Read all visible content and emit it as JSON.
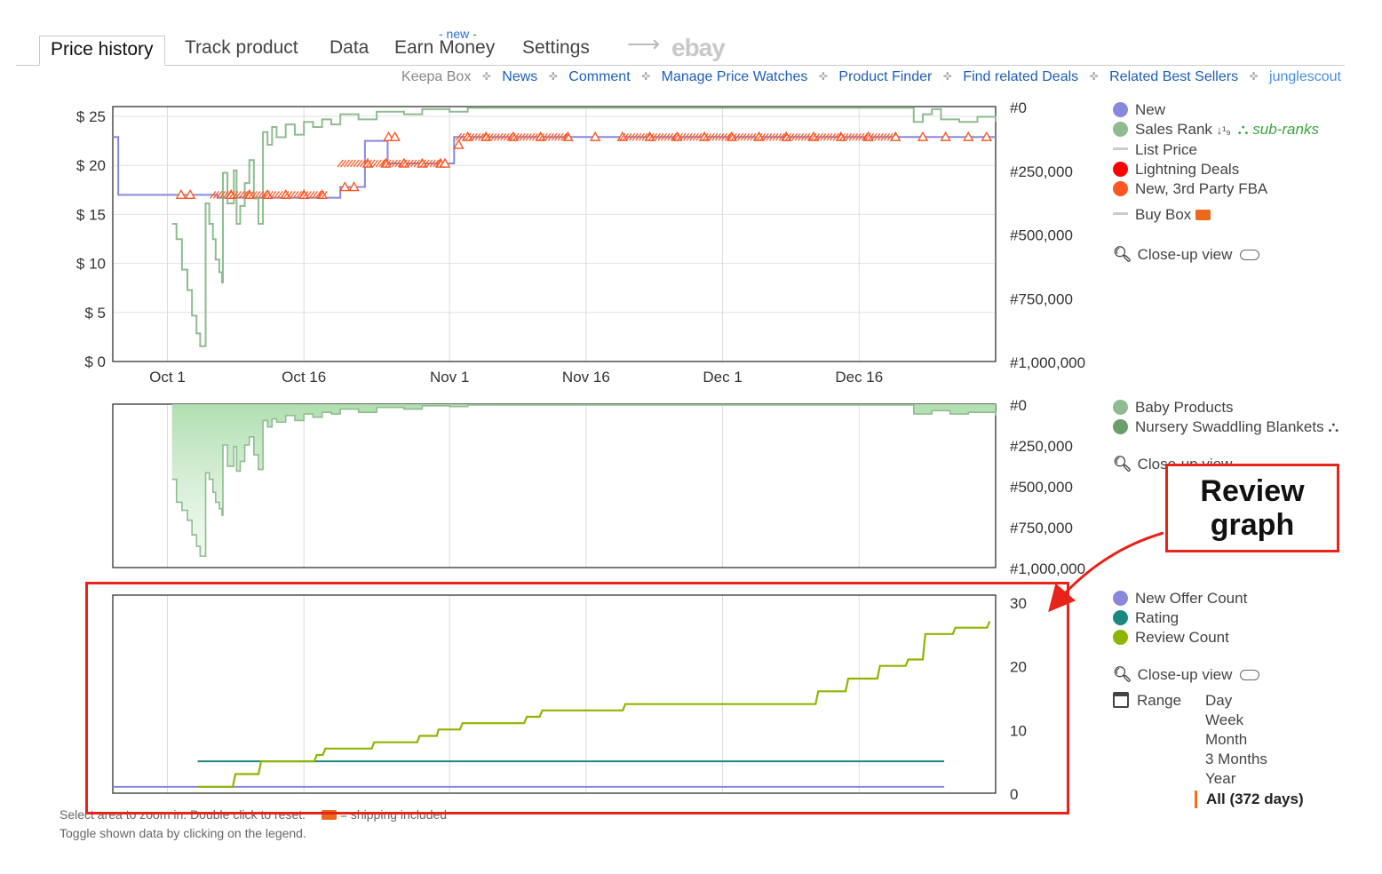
{
  "tabs": {
    "price_history": "Price history",
    "track_product": "Track product",
    "data": "Data",
    "earn_money": "Earn Money",
    "new_badge": "- new -",
    "settings": "Settings",
    "arrow": "⟶",
    "ebay": "ebay"
  },
  "sublinks": {
    "keepa_box": "Keepa Box",
    "news": "News",
    "comment": "Comment",
    "manage_price_watches": "Manage Price Watches",
    "product_finder": "Product Finder",
    "find_related_deals": "Find related Deals",
    "related_best_sellers": "Related Best Sellers",
    "junglescout": "junglescout",
    "separator": "✜"
  },
  "legend_main": {
    "new": "New",
    "sales_rank": "Sales Rank",
    "sort_glyph": "↓¹₉",
    "sub_ranks": "sub-ranks",
    "list_price": "List Price",
    "lightning_deals": "Lightning Deals",
    "new_3rd_party_fba": "New, 3rd Party FBA",
    "buy_box": "Buy Box",
    "close_up_view": "Close-up view"
  },
  "legend_rank": {
    "baby_products": "Baby Products",
    "nursery": "Nursery Swaddling Blankets",
    "close_up_view": "Close-up view"
  },
  "legend_review": {
    "new_offer_count": "New Offer Count",
    "rating": "Rating",
    "review_count": "Review Count",
    "close_up_view": "Close-up view",
    "range_label": "Range",
    "range_options": [
      "Day",
      "Week",
      "Month",
      "3 Months",
      "Year",
      "All (372 days)"
    ]
  },
  "footer": {
    "line1": "Select area to zoom in. Double click to reset.",
    "shipping": "= shipping included",
    "line2": "Toggle shown data by clicking on the legend."
  },
  "callout": {
    "line1": "Review",
    "line2": "graph"
  },
  "colors": {
    "new": "#8888dd",
    "sales_rank": "#8fbc8f",
    "list_price": "#cccccc",
    "lightning": "#ff0000",
    "fba": "#ff5722",
    "baby_products": "#8fbc8f",
    "nursery": "#6b9e6b",
    "offer_count": "#8888dd",
    "rating": "#1a8a80",
    "review_count": "#8db600",
    "callout": "#e8231a",
    "range_marker": "#ff6a1a"
  },
  "chart_data": [
    {
      "type": "line",
      "name": "price-chart",
      "x_ticks": [
        "Oct 1",
        "Oct 16",
        "Nov 1",
        "Nov 16",
        "Dec 1",
        "Dec 16"
      ],
      "x_tick_days": [
        0,
        15,
        31,
        46,
        61,
        76
      ],
      "x_range_days": [
        -6,
        91
      ],
      "y_left_ticks": [
        "$ 0",
        "$ 5",
        "$ 10",
        "$ 15",
        "$ 20",
        "$ 25"
      ],
      "ylim_left": [
        0,
        26
      ],
      "y_right_ticks": [
        "#0",
        "#250,000",
        "#500,000",
        "#750,000",
        "#1,000,000"
      ],
      "ylim_right": [
        0,
        1000000
      ],
      "series": [
        {
          "name": "New",
          "axis": "left",
          "points": [
            [
              -6,
              22.9
            ],
            [
              -5.4,
              22.9
            ],
            [
              -5.4,
              17
            ],
            [
              5.5,
              17
            ],
            [
              5.5,
              16.7
            ],
            [
              19,
              16.7
            ],
            [
              19,
              17.8
            ],
            [
              21.7,
              17.8
            ],
            [
              21.7,
              22.5
            ],
            [
              24.2,
              22.5
            ],
            [
              24.2,
              20.2
            ],
            [
              31.5,
              20.2
            ],
            [
              31.5,
              22.9
            ],
            [
              91,
              22.9
            ]
          ]
        },
        {
          "name": "Sales Rank",
          "axis": "right",
          "points": [
            [
              0.5,
              460000
            ],
            [
              1,
              520000
            ],
            [
              1.6,
              640000
            ],
            [
              2.2,
              720000
            ],
            [
              2.7,
              820000
            ],
            [
              3.2,
              890000
            ],
            [
              3.6,
              940000
            ],
            [
              4,
              940000
            ],
            [
              4.2,
              380000
            ],
            [
              4.6,
              460000
            ],
            [
              5,
              520000
            ],
            [
              5.3,
              600000
            ],
            [
              5.7,
              650000
            ],
            [
              6,
              690000
            ],
            [
              6.1,
              260000
            ],
            [
              6.6,
              380000
            ],
            [
              7.3,
              250000
            ],
            [
              7.6,
              460000
            ],
            [
              8,
              390000
            ],
            [
              8.5,
              300000
            ],
            [
              9,
              210000
            ],
            [
              9.5,
              360000
            ],
            [
              10,
              460000
            ],
            [
              10.5,
              100000
            ],
            [
              11,
              150000
            ],
            [
              11.5,
              80000
            ],
            [
              12,
              120000
            ],
            [
              13,
              70000
            ],
            [
              14,
              110000
            ],
            [
              15,
              60000
            ],
            [
              16,
              80000
            ],
            [
              17,
              50000
            ],
            [
              18,
              70000
            ],
            [
              19,
              30000
            ],
            [
              21,
              50000
            ],
            [
              23,
              20000
            ],
            [
              26,
              30000
            ],
            [
              28,
              10000
            ],
            [
              31,
              20000
            ],
            [
              33,
              5000
            ],
            [
              60,
              5000
            ],
            [
              73,
              5000
            ],
            [
              81,
              5000
            ],
            [
              82,
              60000
            ],
            [
              83,
              30000
            ],
            [
              84,
              10000
            ],
            [
              85,
              50000
            ],
            [
              87,
              60000
            ],
            [
              89,
              40000
            ],
            [
              91,
              60000
            ]
          ]
        },
        {
          "name": "New, 3rd Party FBA",
          "axis": "left",
          "markers": [
            [
              1.5,
              17
            ],
            [
              2.5,
              17
            ],
            [
              7,
              17
            ],
            [
              9,
              17
            ],
            [
              11,
              17
            ],
            [
              13,
              17
            ],
            [
              15,
              17
            ],
            [
              17,
              17
            ],
            [
              19.5,
              17.8
            ],
            [
              20.5,
              17.8
            ],
            [
              22,
              20.2
            ],
            [
              24,
              20.2
            ],
            [
              26,
              20.2
            ],
            [
              28,
              20.2
            ],
            [
              30,
              20.2
            ],
            [
              30.5,
              20.2
            ],
            [
              24.3,
              22.9
            ],
            [
              25,
              22.9
            ],
            [
              32,
              22.1
            ],
            [
              33,
              22.9
            ],
            [
              35,
              22.9
            ],
            [
              38,
              22.9
            ],
            [
              41,
              22.9
            ],
            [
              44,
              22.9
            ],
            [
              47,
              22.9
            ],
            [
              50,
              22.9
            ],
            [
              53,
              22.9
            ],
            [
              56,
              22.9
            ],
            [
              59,
              22.9
            ],
            [
              62,
              22.9
            ],
            [
              65,
              22.9
            ],
            [
              68,
              22.9
            ],
            [
              71,
              22.9
            ],
            [
              74,
              22.9
            ],
            [
              77,
              22.9
            ],
            [
              80,
              22.9
            ],
            [
              83,
              22.9
            ],
            [
              85.5,
              22.9
            ],
            [
              88,
              22.9
            ],
            [
              90,
              22.9
            ]
          ]
        }
      ]
    },
    {
      "type": "area",
      "name": "rank-chart",
      "x_ticks": [
        "Oct 1",
        "Oct 16",
        "Nov 1",
        "Nov 16",
        "Dec 1",
        "Dec 16"
      ],
      "y_right_ticks": [
        "#0",
        "#250,000",
        "#500,000",
        "#750,000",
        "#1,000,000"
      ],
      "ylim_right": [
        0,
        1000000
      ],
      "series": [
        {
          "name": "Baby Products",
          "points": [
            [
              0.5,
              460000
            ],
            [
              1,
              600000
            ],
            [
              1.6,
              650000
            ],
            [
              2.2,
              710000
            ],
            [
              2.7,
              800000
            ],
            [
              3.2,
              870000
            ],
            [
              3.6,
              930000
            ],
            [
              4,
              930000
            ],
            [
              4.2,
              420000
            ],
            [
              4.6,
              460000
            ],
            [
              5,
              540000
            ],
            [
              5.3,
              600000
            ],
            [
              5.7,
              640000
            ],
            [
              6,
              680000
            ],
            [
              6.1,
              250000
            ],
            [
              6.6,
              380000
            ],
            [
              7.3,
              260000
            ],
            [
              7.6,
              410000
            ],
            [
              8,
              350000
            ],
            [
              8.5,
              250000
            ],
            [
              9,
              200000
            ],
            [
              9.5,
              310000
            ],
            [
              10,
              400000
            ],
            [
              10.5,
              100000
            ],
            [
              11,
              140000
            ],
            [
              11.5,
              90000
            ],
            [
              12,
              110000
            ],
            [
              13,
              70000
            ],
            [
              14,
              100000
            ],
            [
              15,
              60000
            ],
            [
              16,
              80000
            ],
            [
              17,
              50000
            ],
            [
              18,
              60000
            ],
            [
              19,
              30000
            ],
            [
              21,
              50000
            ],
            [
              23,
              20000
            ],
            [
              26,
              30000
            ],
            [
              28,
              10000
            ],
            [
              31,
              15000
            ],
            [
              33,
              5000
            ],
            [
              81,
              5000
            ],
            [
              82,
              60000
            ],
            [
              84,
              40000
            ],
            [
              86,
              60000
            ],
            [
              88,
              50000
            ],
            [
              91,
              70000
            ]
          ]
        }
      ]
    },
    {
      "type": "line",
      "name": "review-chart",
      "x_ticks": [],
      "y_right_ticks": [
        "0",
        "10",
        "20",
        "30"
      ],
      "ylim_right": [
        0,
        30
      ],
      "series": [
        {
          "name": "New Offer Count",
          "points": [
            [
              -6,
              1
            ],
            [
              91,
              1
            ]
          ]
        },
        {
          "name": "Rating",
          "points": [
            [
              3.9,
              5
            ],
            [
              91,
              5
            ]
          ]
        },
        {
          "name": "Review Count",
          "points": [
            [
              3.9,
              1
            ],
            [
              8,
              1
            ],
            [
              8.3,
              3
            ],
            [
              11,
              3
            ],
            [
              11.3,
              5
            ],
            [
              17.5,
              5
            ],
            [
              17.8,
              6
            ],
            [
              18.5,
              6
            ],
            [
              18.8,
              7
            ],
            [
              24.2,
              7
            ],
            [
              24.5,
              8
            ],
            [
              29.5,
              8
            ],
            [
              29.8,
              9
            ],
            [
              31.8,
              9
            ],
            [
              32,
              10
            ],
            [
              34.5,
              10
            ],
            [
              34.8,
              11
            ],
            [
              42,
              11
            ],
            [
              42.3,
              12
            ],
            [
              43.8,
              12
            ],
            [
              44.1,
              13
            ],
            [
              53.5,
              13
            ],
            [
              53.8,
              14
            ],
            [
              76,
              14
            ],
            [
              76.3,
              16
            ],
            [
              79.5,
              16
            ],
            [
              79.8,
              18
            ],
            [
              83.2,
              18
            ],
            [
              83.5,
              20
            ],
            [
              86.5,
              20
            ],
            [
              86.8,
              21
            ],
            [
              88.5,
              21
            ],
            [
              88.8,
              25
            ],
            [
              92,
              25
            ],
            [
              92.3,
              26
            ],
            [
              96,
              26
            ],
            [
              96.3,
              27
            ]
          ]
        }
      ]
    }
  ]
}
